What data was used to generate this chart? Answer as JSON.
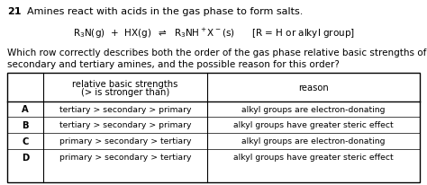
{
  "question_number": "21",
  "question_text": "Amines react with acids in the gas phase to form salts.",
  "body_text_1": "Which row correctly describes both the order of the gas phase relative basic strengths of primary,",
  "body_text_2": "secondary and tertiary amines, and the possible reason for this order?",
  "col1_header_1": "relative basic strengths",
  "col1_header_2": "(> is stronger than)",
  "col2_header": "reason",
  "rows": [
    {
      "label": "A",
      "strength": "tertiary > secondary > primary",
      "reason": "alkyl groups are electron-donating"
    },
    {
      "label": "B",
      "strength": "tertiary > secondary > primary",
      "reason": "alkyl groups have greater steric effect"
    },
    {
      "label": "C",
      "strength": "primary > secondary > tertiary",
      "reason": "alkyl groups are electron-donating"
    },
    {
      "label": "D",
      "strength": "primary > secondary > tertiary",
      "reason": "alkyl groups have greater steric effect"
    }
  ],
  "bg_color": "#ffffff",
  "text_color": "#000000",
  "table_border_color": "#000000",
  "fs_qnum": 8.0,
  "fs_qtxt": 8.0,
  "fs_eq": 7.5,
  "fs_body": 7.5,
  "fs_table": 7.2
}
